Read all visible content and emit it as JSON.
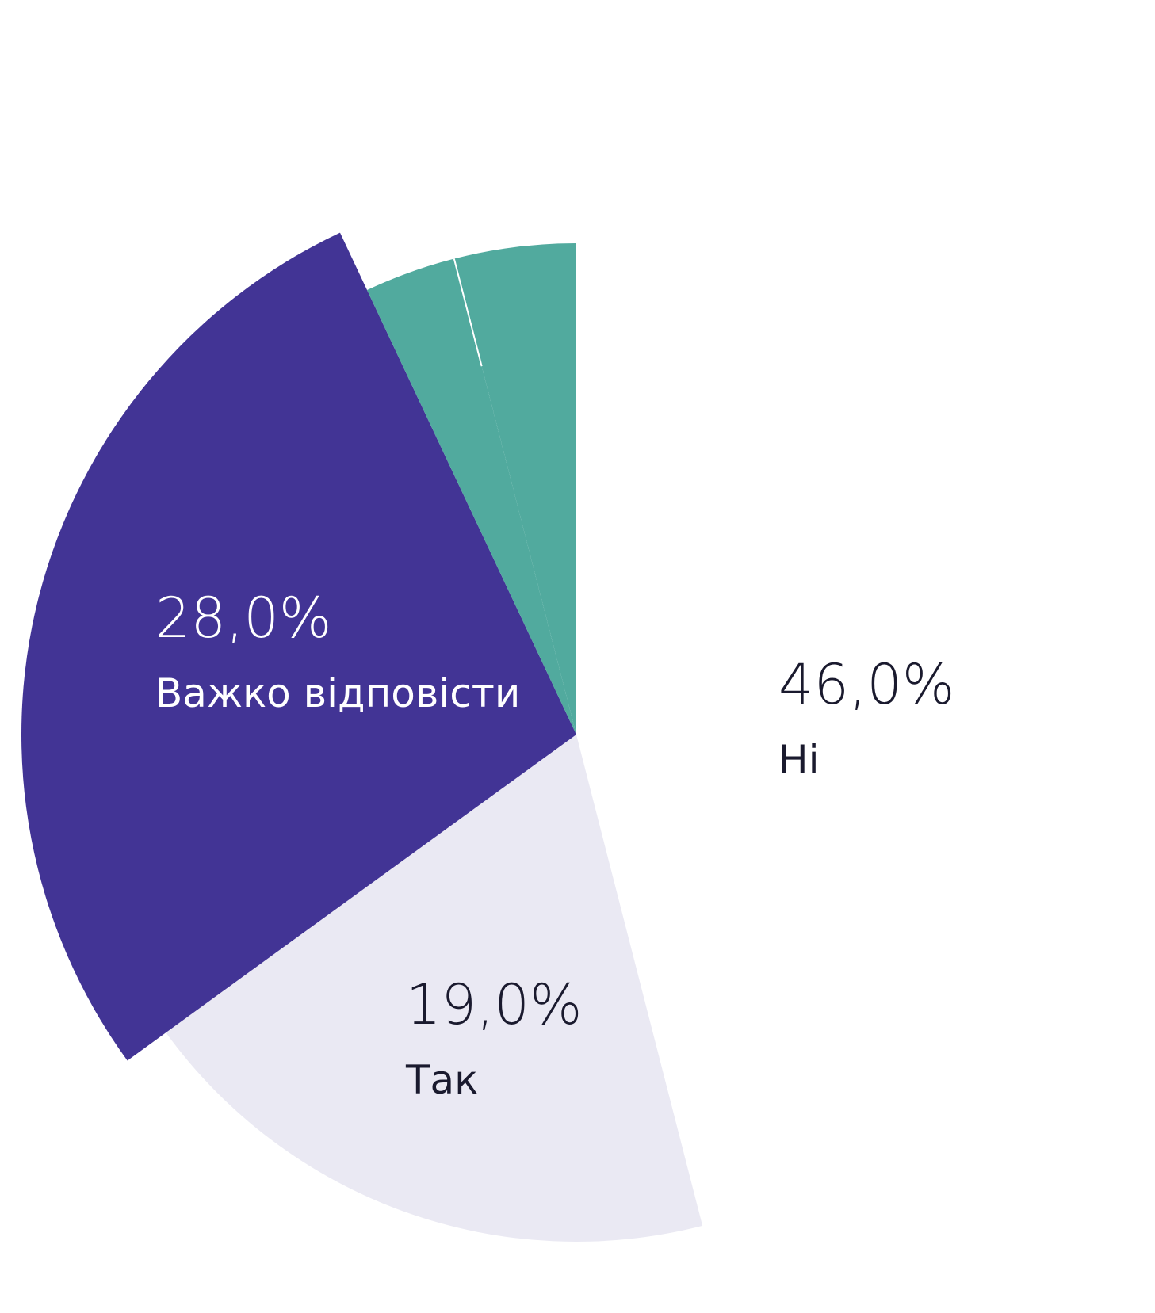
{
  "chart_data": {
    "type": "pie",
    "slices": [
      {
        "label": "Ні",
        "value": 46.0,
        "value_label": "46,0%",
        "color": "#ffffff",
        "text_color": "#1a1a2e"
      },
      {
        "label": "Так",
        "value": 19.0,
        "value_label": "19,0%",
        "color": "#eae9f3",
        "text_color": "#1a1a2e"
      },
      {
        "label": "Важко відповісти",
        "value": 28.0,
        "value_label": "28,0%",
        "color": "#423495",
        "text_color": "#ffffff"
      },
      {
        "label": "",
        "value": 3.0,
        "value_label": "",
        "color": "#51aa9e",
        "text_color": "#ffffff"
      },
      {
        "label": "",
        "value": 4.0,
        "value_label": "",
        "color": "#51aa9e",
        "text_color": "#ffffff"
      }
    ],
    "legend": "none"
  }
}
